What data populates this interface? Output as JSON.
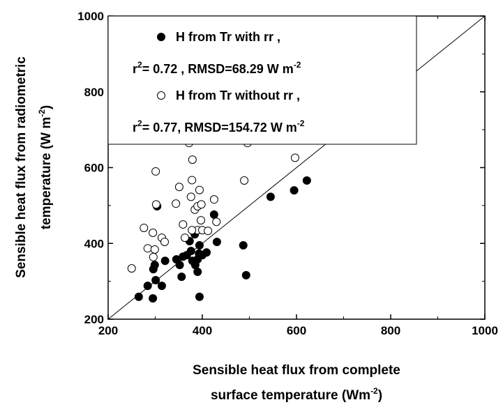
{
  "chart_data": {
    "type": "scatter",
    "x_label": [
      [
        "Sensible heat flux from complete"
      ],
      [
        "surface temperature (Wm",
        "-2",
        ")"
      ]
    ],
    "y_label": [
      [
        "Sensible heat flux from radiometric"
      ],
      [
        "temperature (W m",
        "-2",
        ")"
      ]
    ],
    "xlim": [
      200,
      1000
    ],
    "ylim": [
      200,
      1000
    ],
    "xticks": [
      200,
      400,
      600,
      800,
      1000
    ],
    "yticks": [
      200,
      400,
      600,
      800,
      1000
    ],
    "series": [
      {
        "name": "H from Tr with rr ,",
        "color": "#000000",
        "filled": true,
        "x": [
          265,
          284,
          295,
          301,
          314,
          296,
          299,
          304,
          321,
          345,
          352,
          356,
          359,
          367,
          373,
          376,
          379,
          384,
          385,
          390,
          390,
          394,
          394,
          400,
          409,
          425,
          431,
          487,
          493,
          545,
          595,
          622,
          393
        ],
        "values": [
          259,
          288,
          255,
          303,
          288,
          332,
          343,
          498,
          354,
          358,
          343,
          312,
          365,
          369,
          406,
          380,
          354,
          424,
          343,
          325,
          358,
          259,
          395,
          369,
          376,
          476,
          404,
          395,
          316,
          523,
          540,
          566,
          373
        ]
      },
      {
        "name": "H from Tr without rr ,",
        "color": "#000000",
        "filled": false,
        "x": [
          250,
          276,
          284,
          295,
          299,
          296,
          302,
          301,
          314,
          320,
          344,
          351,
          359,
          363,
          378,
          376,
          379,
          384,
          390,
          394,
          398,
          390,
          400,
          412,
          430,
          425,
          378,
          489,
          597,
          397,
          372,
          496
        ],
        "values": [
          334,
          441,
          387,
          428,
          384,
          364,
          503,
          590,
          415,
          404,
          505,
          549,
          450,
          415,
          567,
          523,
          621,
          489,
          498,
          541,
          503,
          435,
          435,
          433,
          457,
          516,
          435,
          566,
          626,
          461,
          665,
          665
        ]
      }
    ],
    "annotations": [
      [
        "r",
        "2",
        "= 0.72 , RMSD=68.29 W m",
        "-2"
      ],
      [
        "r",
        "2",
        "= 0.77, RMSD=154.72 W m",
        "-2"
      ]
    ]
  }
}
